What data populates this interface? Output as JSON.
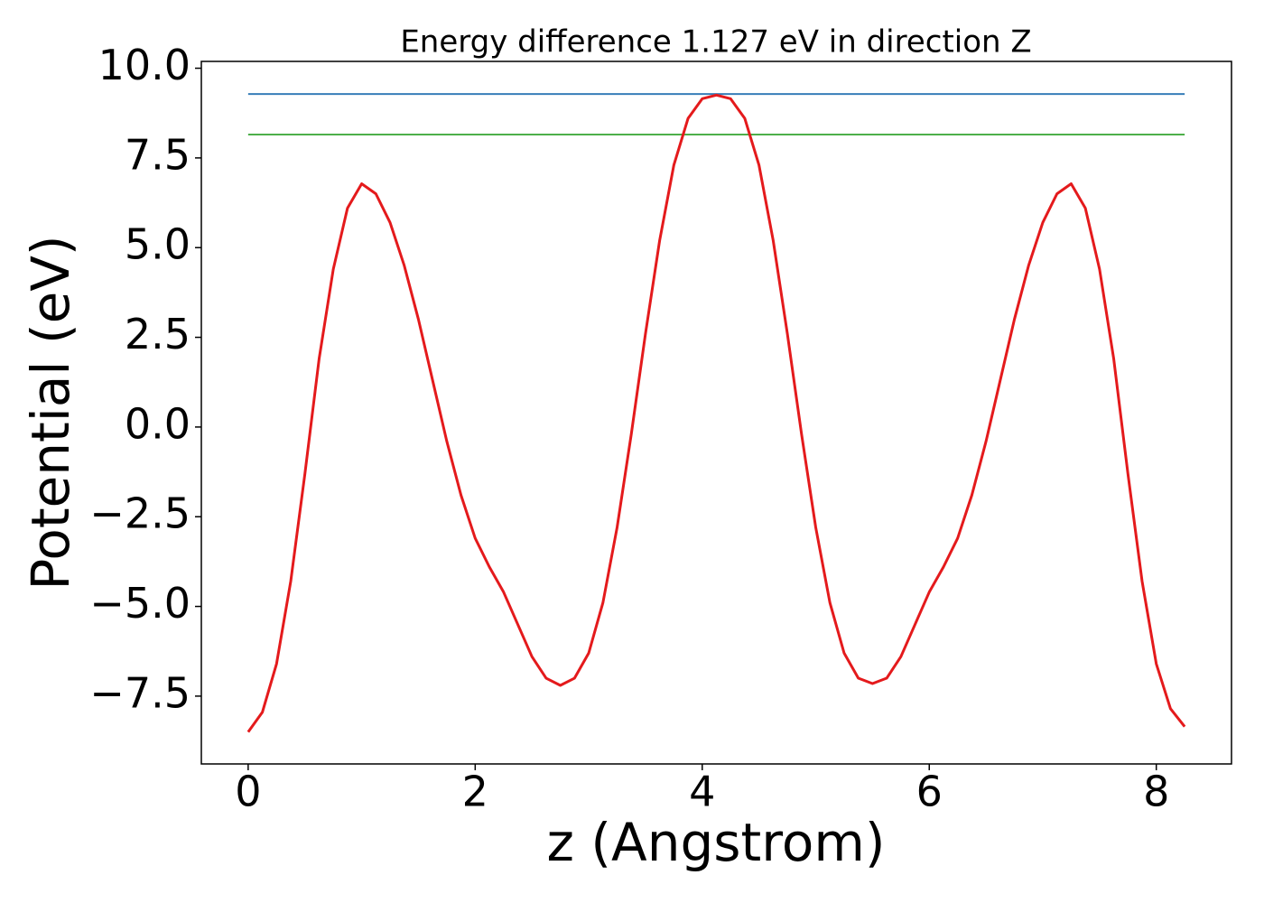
{
  "chart_data": {
    "type": "line",
    "title": "Energy difference 1.127 eV in direction Z",
    "xlabel": "z (Angstrom)",
    "ylabel": "Potential (eV)",
    "x": [
      0,
      0.125,
      0.25,
      0.375,
      0.5,
      0.625,
      0.75,
      0.875,
      1.0,
      1.125,
      1.25,
      1.375,
      1.5,
      1.625,
      1.75,
      1.875,
      2.0,
      2.125,
      2.25,
      2.375,
      2.5,
      2.625,
      2.75,
      2.875,
      3.0,
      3.125,
      3.25,
      3.375,
      3.5,
      3.625,
      3.75,
      3.875,
      4.0,
      4.125,
      4.25,
      4.375,
      4.5,
      4.625,
      4.75,
      4.875,
      5.0,
      5.125,
      5.25,
      5.375,
      5.5,
      5.625,
      5.75,
      5.875,
      6.0,
      6.125,
      6.25,
      6.375,
      6.5,
      6.625,
      6.75,
      6.875,
      7.0,
      7.125,
      7.25,
      7.375,
      7.5,
      7.625,
      7.75,
      7.875,
      8.0,
      8.125,
      8.25
    ],
    "series": [
      {
        "color": "#e41a1c",
        "values": [
          -8.5,
          -7.95,
          -6.6,
          -4.3,
          -1.3,
          1.9,
          4.4,
          6.1,
          6.78,
          6.5,
          5.7,
          4.5,
          3.0,
          1.3,
          -0.4,
          -1.9,
          -3.1,
          -3.9,
          -4.6,
          -5.5,
          -6.4,
          -7.0,
          -7.2,
          -7.0,
          -6.3,
          -4.9,
          -2.8,
          -0.2,
          2.6,
          5.2,
          7.3,
          8.6,
          9.15,
          9.25,
          9.15,
          8.6,
          7.3,
          5.2,
          2.6,
          -0.2,
          -2.8,
          -4.9,
          -6.3,
          -7.0,
          -7.15,
          -7.0,
          -6.4,
          -5.5,
          -4.6,
          -3.9,
          -3.1,
          -1.9,
          -0.4,
          1.3,
          3.0,
          4.5,
          5.7,
          6.5,
          6.78,
          6.1,
          4.4,
          1.9,
          -1.3,
          -4.3,
          -6.6,
          -7.85,
          -8.35
        ]
      }
    ],
    "hlines": [
      {
        "y": 9.28,
        "color": "#377eb8"
      },
      {
        "y": 8.153,
        "color": "#4daf4a"
      }
    ],
    "xlim": [
      -0.4125,
      8.6625
    ],
    "ylim": [
      -9.39,
      10.19
    ],
    "xticks": [
      0,
      2,
      4,
      6,
      8
    ],
    "yticks": [
      {
        "value": 10,
        "label": "10.0"
      },
      {
        "value": 7.5,
        "label": "7.5"
      },
      {
        "value": 5,
        "label": "5.0"
      },
      {
        "value": 2.5,
        "label": "2.5"
      },
      {
        "value": 0,
        "label": "0.0"
      },
      {
        "value": -2.5,
        "label": "−2.5"
      },
      {
        "value": -5,
        "label": "−5.0"
      },
      {
        "value": -7.5,
        "label": "−7.5"
      }
    ]
  }
}
